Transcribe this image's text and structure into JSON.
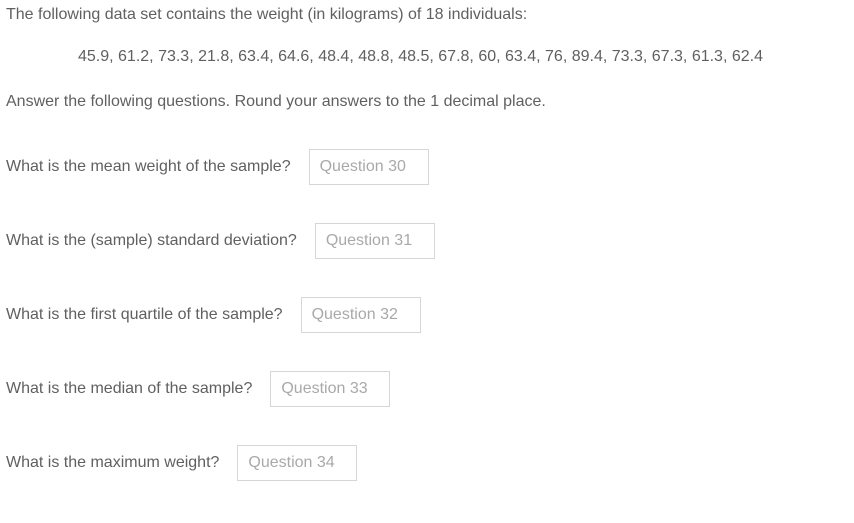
{
  "intro": "The following data set contains the weight (in kilograms) of 18 individuals:",
  "data_values": "45.9, 61.2, 73.3, 21.8, 63.4, 64.6, 48.4, 48.8, 48.5, 67.8, 60, 63.4, 76, 89.4, 73.3, 67.3, 61.3, 62.4",
  "instruction": "Answer the following questions. Round your answers to the 1 decimal place.",
  "questions": {
    "q30": {
      "label": "What is the mean weight of the sample?",
      "placeholder": "Question 30"
    },
    "q31": {
      "label": "What is the (sample) standard deviation?",
      "placeholder": "Question 31"
    },
    "q32": {
      "label": "What is the first quartile of the sample?",
      "placeholder": "Question 32"
    },
    "q33": {
      "label": "What is the median of the sample?",
      "placeholder": "Question 33"
    },
    "q34": {
      "label": "What is the maximum weight?",
      "placeholder": "Question 34"
    }
  }
}
